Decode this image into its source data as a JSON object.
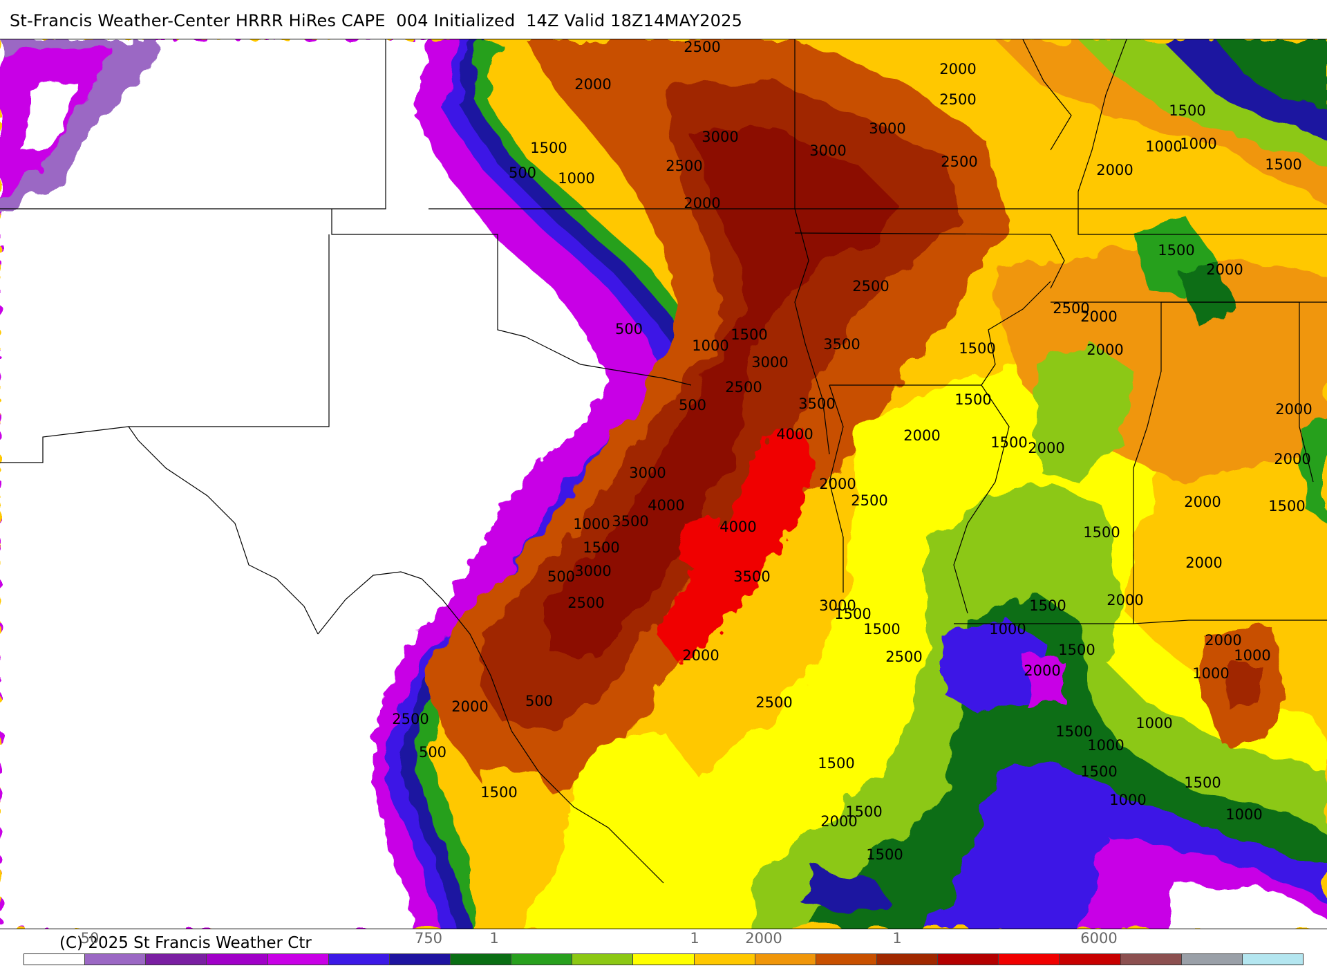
{
  "title": "St-Francis Weather-Center HRRR HiRes CAPE  004 Initialized  14Z Valid 18Z14MAY2025",
  "copyright": "(C) 2025 St Francis Weather Ctr",
  "legend": {
    "colors": [
      "#ffffff",
      "#9b68c4",
      "#7a1fa2",
      "#a000c8",
      "#c800e6",
      "#3c19e6",
      "#1e14a0",
      "#0a6e14",
      "#28a01e",
      "#8cc814",
      "#ffff00",
      "#ffc800",
      "#f0960a",
      "#c85000",
      "#a02800",
      "#b40000",
      "#f00000",
      "#c80000",
      "#8c5050",
      "#9aa0a8",
      "#b4e6f0"
    ],
    "tick_labels": [
      "50",
      "750",
      "1",
      "1",
      "2000",
      "1",
      "6000"
    ]
  },
  "contour_labels": [
    "2500",
    "2000",
    "2000",
    "2500",
    "3000",
    "3000",
    "1500",
    "500",
    "1000",
    "2500",
    "3000",
    "2500",
    "1500",
    "1000",
    "1000",
    "1500",
    "2000",
    "2000",
    "1500",
    "2000",
    "2500",
    "2500",
    "2000",
    "500",
    "1000",
    "1500",
    "3000",
    "3500",
    "2500",
    "3500",
    "500",
    "4000",
    "2000",
    "1500",
    "2000",
    "1500",
    "1500",
    "2000",
    "2000",
    "3000",
    "2000",
    "4000",
    "3500",
    "4000",
    "2000",
    "2500",
    "2000",
    "1500",
    "1000",
    "1500",
    "1500",
    "3000",
    "3500",
    "2000",
    "500",
    "2500",
    "3000",
    "2000",
    "1500",
    "1500",
    "1500",
    "2000",
    "1000",
    "1500",
    "2000",
    "2500",
    "1000",
    "2000",
    "1000",
    "500",
    "2500",
    "2000",
    "2500",
    "1000",
    "1500",
    "1000",
    "1500",
    "1500",
    "500",
    "1500",
    "1500",
    "1000",
    "1500",
    "2000",
    "1000",
    "1500"
  ]
}
